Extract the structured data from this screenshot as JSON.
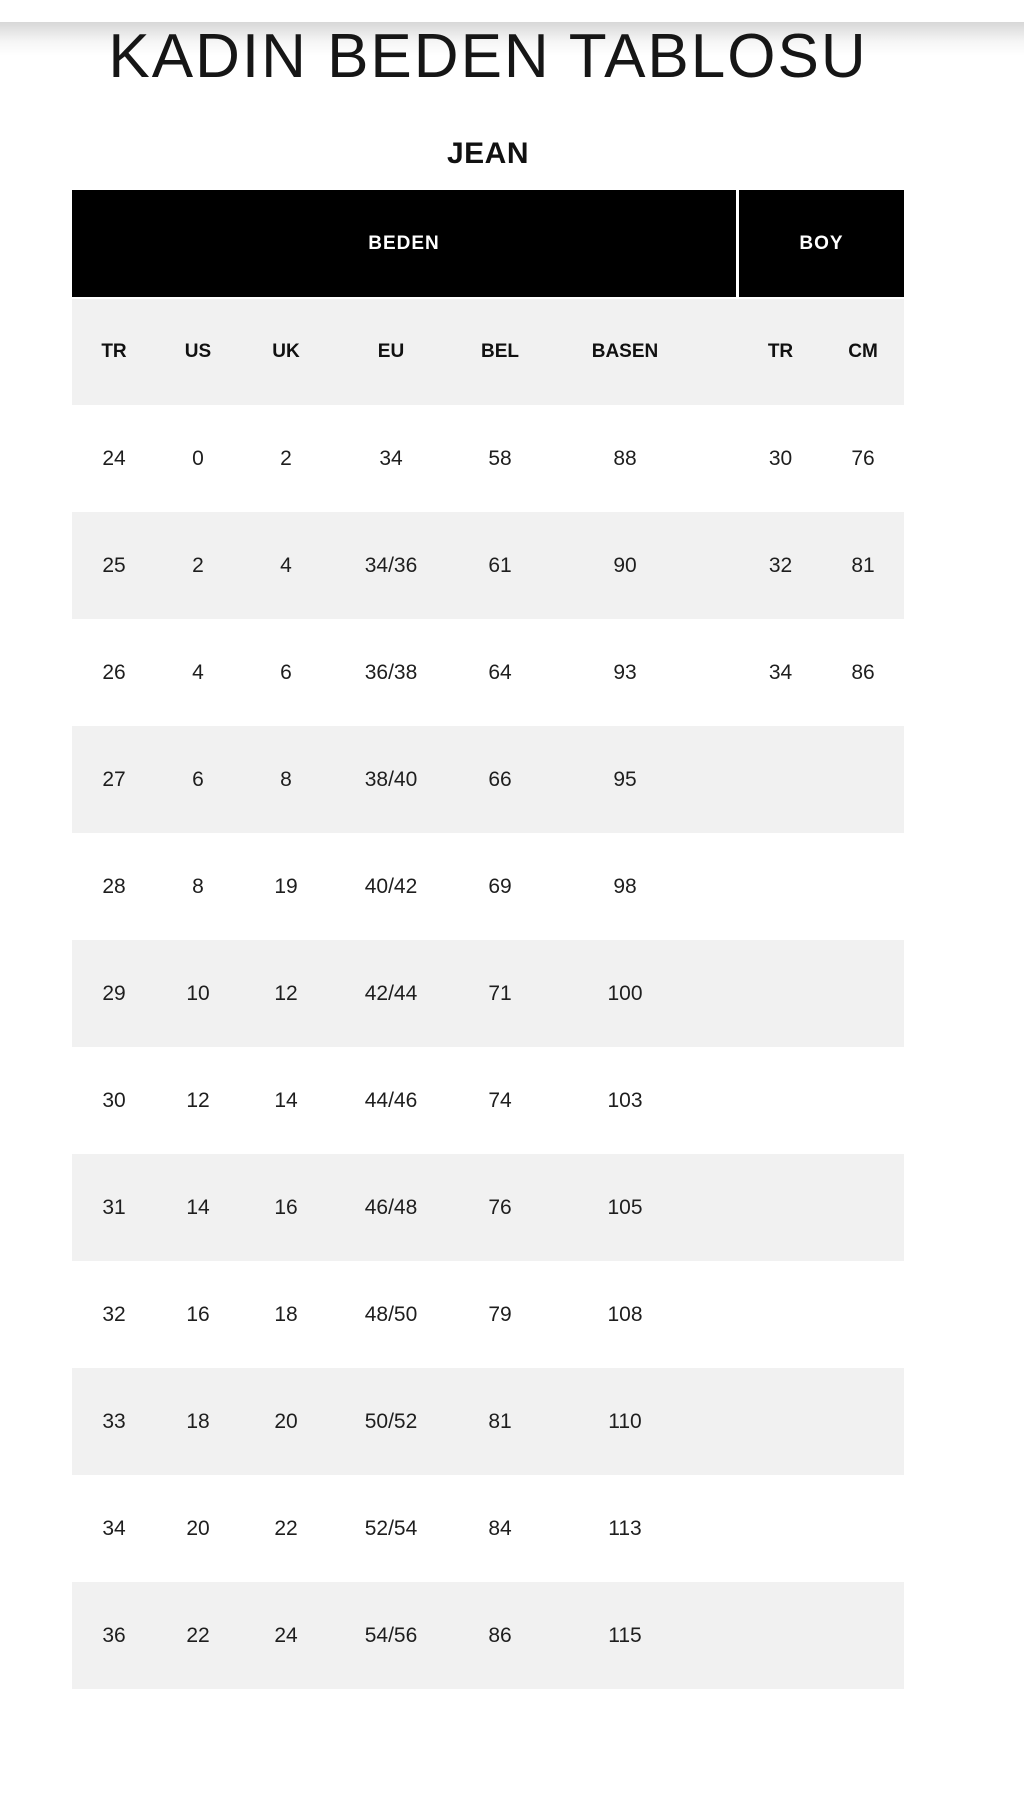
{
  "page": {
    "title": "KADIN BEDEN TABLOSU",
    "subtitle": "JEAN"
  },
  "table": {
    "group_headers": [
      {
        "label": "BEDEN",
        "span": 6
      },
      {
        "label": "BOY",
        "span": 2
      }
    ],
    "columns": [
      "TR",
      "US",
      "UK",
      "EU",
      "BEL",
      "BASEN",
      "TR",
      "CM"
    ],
    "rows": [
      [
        "24",
        "0",
        "2",
        "34",
        "58",
        "88",
        "30",
        "76"
      ],
      [
        "25",
        "2",
        "4",
        "34/36",
        "61",
        "90",
        "32",
        "81"
      ],
      [
        "26",
        "4",
        "6",
        "36/38",
        "64",
        "93",
        "34",
        "86"
      ],
      [
        "27",
        "6",
        "8",
        "38/40",
        "66",
        "95",
        "",
        ""
      ],
      [
        "28",
        "8",
        "19",
        "40/42",
        "69",
        "98",
        "",
        ""
      ],
      [
        "29",
        "10",
        "12",
        "42/44",
        "71",
        "100",
        "",
        ""
      ],
      [
        "30",
        "12",
        "14",
        "44/46",
        "74",
        "103",
        "",
        ""
      ],
      [
        "31",
        "14",
        "16",
        "46/48",
        "76",
        "105",
        "",
        ""
      ],
      [
        "32",
        "16",
        "18",
        "48/50",
        "79",
        "108",
        "",
        ""
      ],
      [
        "33",
        "18",
        "20",
        "50/52",
        "81",
        "110",
        "",
        ""
      ],
      [
        "34",
        "20",
        "22",
        "52/54",
        "84",
        "113",
        "",
        ""
      ],
      [
        "36",
        "22",
        "24",
        "54/56",
        "86",
        "115",
        "",
        ""
      ]
    ],
    "colors": {
      "header_bg": "#000000",
      "header_text": "#ffffff",
      "stripe_bg": "#f1f1f1",
      "body_text": "#1e1e1e"
    }
  }
}
